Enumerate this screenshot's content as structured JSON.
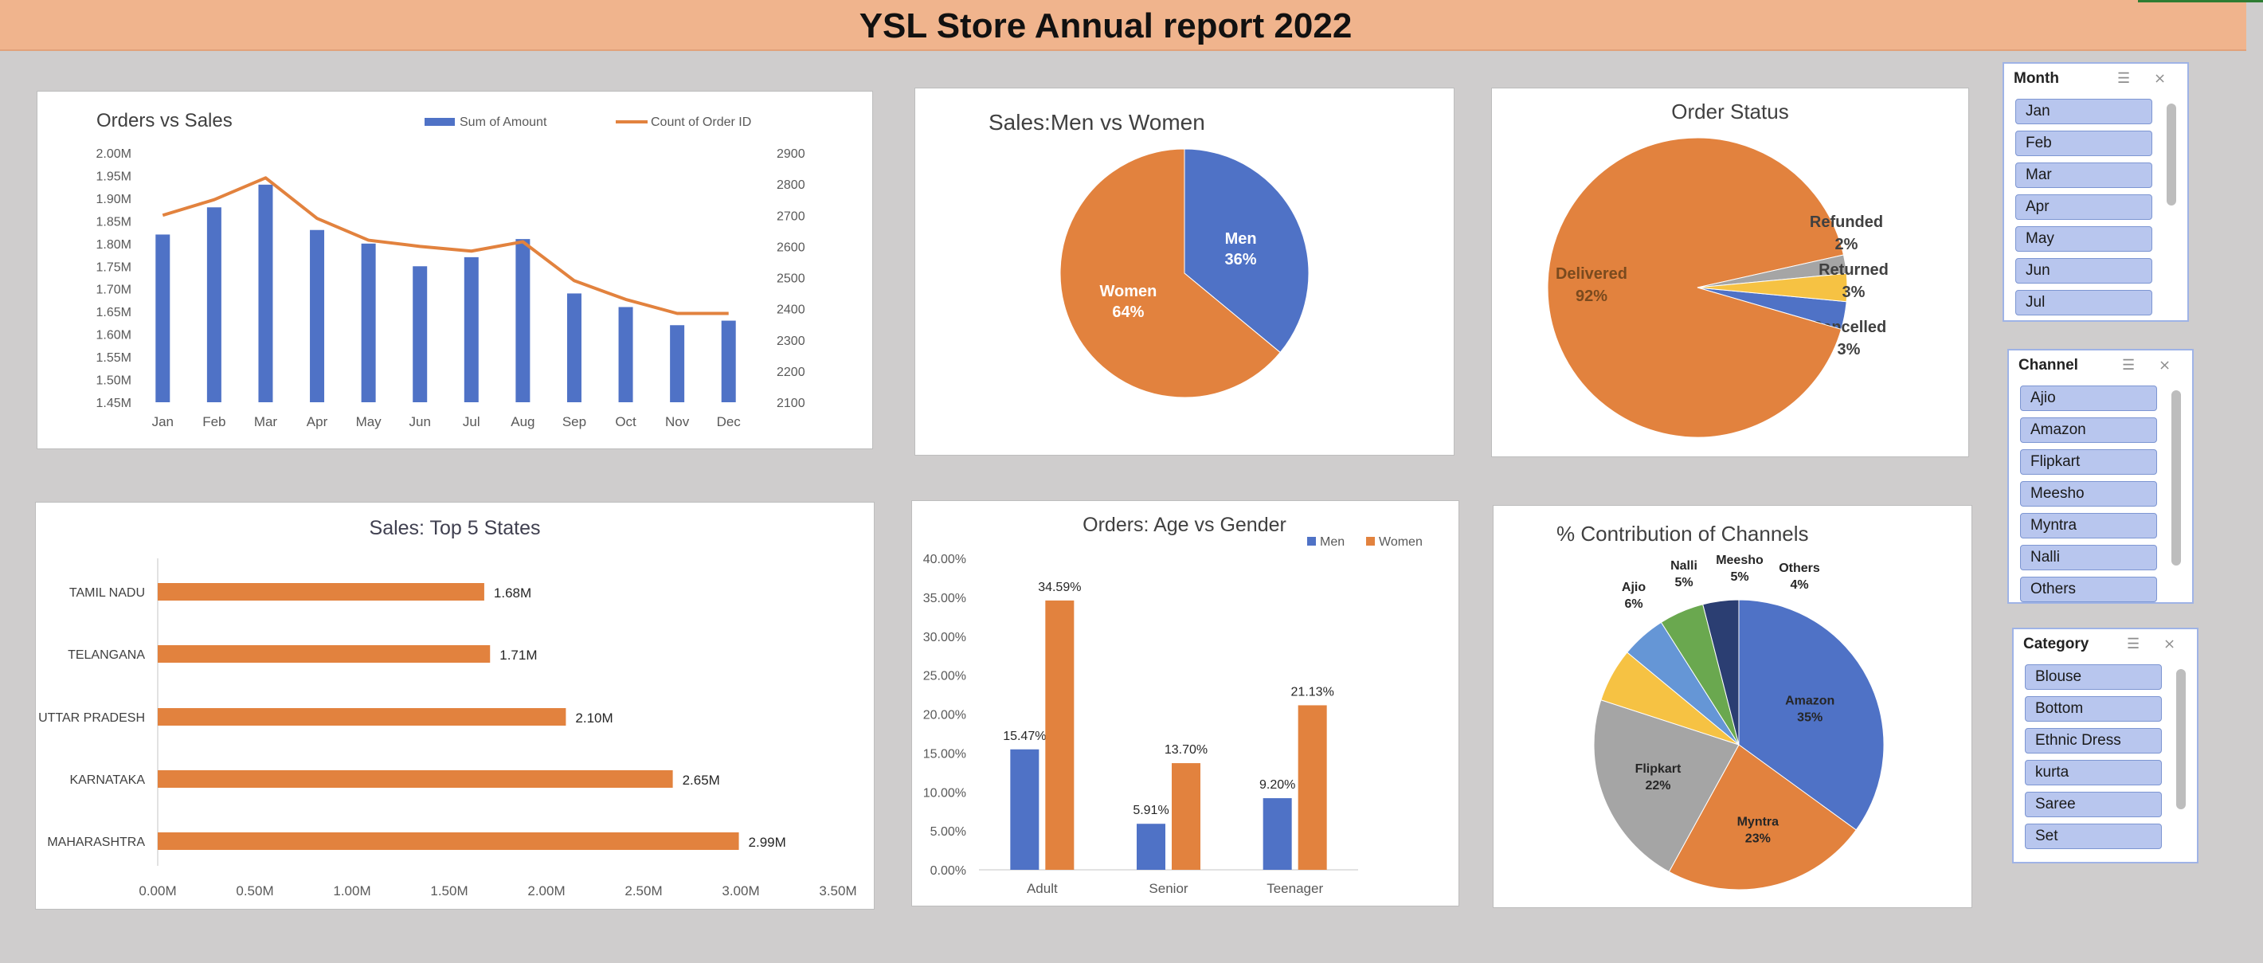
{
  "report": {
    "title": "YSL Store Annual report 2022"
  },
  "colors": {
    "blue": "#4f72c6",
    "orange": "#e2823e",
    "gray": "#a5a5a5",
    "yellow": "#f6c243",
    "lightblue": "#6596d6",
    "green": "#6aa84f",
    "navy": "#2b3e72"
  },
  "slicers": {
    "month": {
      "title": "Month",
      "items": [
        "Jan",
        "Feb",
        "Mar",
        "Apr",
        "May",
        "Jun",
        "Jul"
      ]
    },
    "channel": {
      "title": "Channel",
      "items": [
        "Ajio",
        "Amazon",
        "Flipkart",
        "Meesho",
        "Myntra",
        "Nalli",
        "Others"
      ]
    },
    "category": {
      "title": "Category",
      "items": [
        "Blouse",
        "Bottom",
        "Ethnic Dress",
        "kurta",
        "Saree",
        "Set"
      ]
    }
  },
  "chart_data": [
    {
      "id": "orders_vs_sales",
      "type": "bar",
      "title": "Orders vs Sales",
      "categories": [
        "Jan",
        "Feb",
        "Mar",
        "Apr",
        "May",
        "Jun",
        "Jul",
        "Aug",
        "Sep",
        "Oct",
        "Nov",
        "Dec"
      ],
      "series": [
        {
          "name": "Sum of Amount",
          "type": "bar",
          "axis": "left",
          "values": [
            1.82,
            1.88,
            1.93,
            1.83,
            1.8,
            1.75,
            1.77,
            1.81,
            1.69,
            1.66,
            1.62,
            1.63
          ]
        },
        {
          "name": "Count of Order ID",
          "type": "line",
          "axis": "right",
          "values": [
            2700,
            2750,
            2820,
            2690,
            2620,
            2600,
            2585,
            2615,
            2490,
            2430,
            2385,
            2385
          ]
        }
      ],
      "ylim": [
        1.45,
        2.0
      ],
      "y2lim": [
        2100,
        2900
      ],
      "yticks": [
        "2.00M",
        "1.95M",
        "1.90M",
        "1.85M",
        "1.80M",
        "1.75M",
        "1.70M",
        "1.65M",
        "1.60M",
        "1.55M",
        "1.50M",
        "1.45M"
      ],
      "y2ticks": [
        "2900",
        "2800",
        "2700",
        "2600",
        "2500",
        "2400",
        "2300",
        "2200",
        "2100"
      ],
      "legend": "top-right",
      "grid": false
    },
    {
      "id": "sales_men_women",
      "type": "pie",
      "title": "Sales:Men vs Women",
      "slices": [
        {
          "name": "Men",
          "value": 36,
          "label": "36%"
        },
        {
          "name": "Women",
          "value": 64,
          "label": "64%"
        }
      ]
    },
    {
      "id": "order_status",
      "type": "pie",
      "title": "Order Status",
      "slices": [
        {
          "name": "Cancelled",
          "value": 3,
          "label": "3%"
        },
        {
          "name": "Delivered",
          "value": 92,
          "label": "92%"
        },
        {
          "name": "Refunded",
          "value": 2,
          "label": "2%"
        },
        {
          "name": "Returned",
          "value": 3,
          "label": "3%"
        }
      ]
    },
    {
      "id": "top_states",
      "type": "bar",
      "orientation": "horizontal",
      "title": "Sales: Top 5 States",
      "categories": [
        "TAMIL NADU",
        "TELANGANA",
        "UTTAR PRADESH",
        "KARNATAKA",
        "MAHARASHTRA"
      ],
      "values": [
        1.68,
        1.71,
        2.1,
        2.65,
        2.99
      ],
      "labels": [
        "1.68M",
        "1.71M",
        "2.10M",
        "2.65M",
        "2.99M"
      ],
      "xlim": [
        0,
        3.5
      ],
      "xticks": [
        "0.00M",
        "0.50M",
        "1.00M",
        "1.50M",
        "2.00M",
        "2.50M",
        "3.00M",
        "3.50M"
      ],
      "grid": false
    },
    {
      "id": "age_vs_gender",
      "type": "bar",
      "title": "Orders: Age vs Gender",
      "categories": [
        "Adult",
        "Senior",
        "Teenager"
      ],
      "series": [
        {
          "name": "Men",
          "values": [
            15.47,
            5.91,
            9.2
          ],
          "labels": [
            "15.47%",
            "5.91%",
            "9.20%"
          ]
        },
        {
          "name": "Women",
          "values": [
            34.59,
            13.7,
            21.13
          ],
          "labels": [
            "34.59%",
            "13.70%",
            "21.13%"
          ]
        }
      ],
      "ylim": [
        0,
        40
      ],
      "yticks": [
        "40.00%",
        "35.00%",
        "30.00%",
        "25.00%",
        "20.00%",
        "15.00%",
        "10.00%",
        "5.00%",
        "0.00%"
      ],
      "legend": "top-right",
      "grid": false
    },
    {
      "id": "channel_contribution",
      "type": "pie",
      "title": "% Contribution of Channels",
      "slices": [
        {
          "name": "Amazon",
          "value": 35,
          "label": "35%"
        },
        {
          "name": "Myntra",
          "value": 23,
          "label": "23%"
        },
        {
          "name": "Flipkart",
          "value": 22,
          "label": "22%"
        },
        {
          "name": "Ajio",
          "value": 6,
          "label": "6%"
        },
        {
          "name": "Nalli",
          "value": 5,
          "label": "5%"
        },
        {
          "name": "Meesho",
          "value": 5,
          "label": "5%"
        },
        {
          "name": "Others",
          "value": 4,
          "label": "4%"
        }
      ]
    }
  ]
}
